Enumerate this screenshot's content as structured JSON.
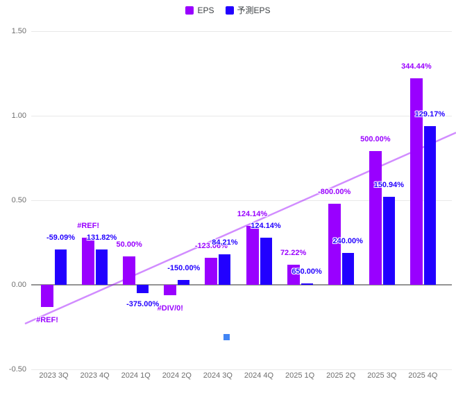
{
  "chart_data": {
    "type": "bar",
    "legend_position": "top",
    "grid": true,
    "ylim": [
      -0.5,
      1.5
    ],
    "categories": [
      "2023 3Q",
      "2023 4Q",
      "2024 1Q",
      "2024 2Q",
      "2024 3Q",
      "2024 4Q",
      "2025 1Q",
      "2025 2Q",
      "2025 3Q",
      "2025 4Q"
    ],
    "y_ticks": [
      {
        "label": "1.50",
        "value": 1.5
      },
      {
        "label": "1.00",
        "value": 1.0
      },
      {
        "label": "0.50",
        "value": 0.5
      },
      {
        "label": "0.00",
        "value": 0.0
      },
      {
        "label": "-0.50",
        "value": -0.5
      }
    ],
    "series": [
      {
        "name": "EPS",
        "color": "#9900ff",
        "values": [
          -0.13,
          0.28,
          0.17,
          -0.06,
          0.16,
          0.35,
          0.12,
          0.48,
          0.79,
          1.22
        ],
        "annotations": [
          "#REF!",
          "#REF!",
          "50.00%",
          "#DIV/0!",
          "-123.06%",
          "124.14%",
          "72.22%",
          "-800.00%",
          "500.00%",
          "344.44%"
        ],
        "annotation_below": [
          true,
          false,
          false,
          true,
          false,
          false,
          false,
          false,
          false,
          false
        ]
      },
      {
        "name": "予測EPS",
        "color": "#2200ff",
        "values": [
          0.21,
          0.21,
          -0.05,
          0.03,
          0.18,
          0.28,
          0.01,
          0.19,
          0.52,
          0.94
        ],
        "annotations": [
          "-59.09%",
          "131.82%",
          "-375.00%",
          "-150.00%",
          "84.21%",
          "124.14%",
          "650.00%",
          "240.00%",
          "150.94%",
          "129.17%"
        ],
        "annotation_below": [
          false,
          false,
          true,
          false,
          false,
          false,
          false,
          false,
          false,
          false
        ]
      }
    ],
    "trendline": {
      "series": "EPS",
      "color": "rgba(153,0,255,0.45)",
      "start_value": -0.23,
      "end_value": 0.9
    },
    "outlier_point": {
      "category": "2024 3Q",
      "category_index": 4,
      "value": -0.31,
      "color": "#4285f4"
    }
  },
  "colors": {
    "background": "#ffffff",
    "grid": "#e8e8e8",
    "zero_baseline": "#949494",
    "axis_text": "#6e6e6e",
    "legend_text": "#3c4043"
  }
}
